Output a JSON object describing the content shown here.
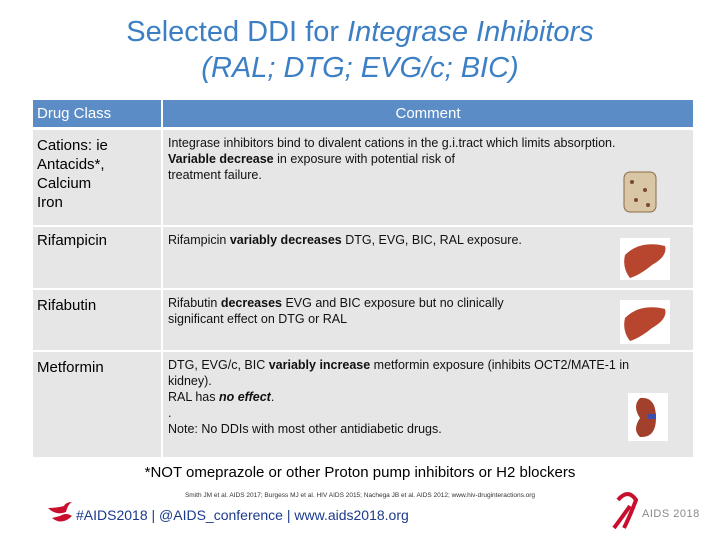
{
  "header": {
    "title": [
      [
        {
          "text": "Selected DDI for "
        },
        {
          "text": "Integrase Inhibitors",
          "italic": true
        }
      ],
      [
        {
          "text": "(RAL; DTG; EVG/c; BIC)",
          "italic": true
        }
      ]
    ]
  },
  "table": {
    "columns": [
      "Drug Class",
      "Comment"
    ],
    "rows": [
      {
        "drug": [
          "Cations: ie",
          "Antacids*,",
          "Calcium",
          "Iron"
        ],
        "comment": [
          [
            {
              "text": "Integrase inhibitors bind to divalent cations in the g.i.tract which limits absorption."
            }
          ],
          [
            {
              "text": "Variable decrease",
              "bold": true
            },
            {
              "text": " in exposure with potential risk of"
            }
          ],
          [
            {
              "text": "treatment failure."
            }
          ]
        ]
      },
      {
        "drug": [
          "Rifampicin"
        ],
        "comment": [
          [
            {
              "text": "Rifampicin "
            },
            {
              "text": "variably decreases",
              "bold": true
            },
            {
              "text": " DTG, EVG, BIC, RAL exposure."
            }
          ]
        ]
      },
      {
        "drug": [
          "Rifabutin"
        ],
        "comment": [
          [
            {
              "text": "Rifabutin "
            },
            {
              "text": "decreases",
              "bold": true
            },
            {
              "text": " EVG and BIC exposure but no clinically"
            }
          ],
          [
            {
              "text": "significant effect on DTG or RAL"
            }
          ]
        ]
      },
      {
        "drug": [
          "Metformin"
        ],
        "comment": [
          [
            {
              "text": "DTG, EVG/c, BIC "
            },
            {
              "text": "variably increase",
              "bold": true
            },
            {
              "text": " metformin exposure (inhibits OCT2/MATE-1 in"
            }
          ],
          [
            {
              "text": "kidney)."
            }
          ],
          [
            {
              "text": "RAL has "
            },
            {
              "text": "no effect",
              "bold": true,
              "italic": true
            },
            {
              "text": "."
            }
          ],
          [
            {
              "text": "."
            }
          ],
          [
            {
              "text": "Note: No DDIs with most other antidiabetic drugs."
            }
          ]
        ]
      }
    ]
  },
  "footnote": "*NOT omeprazole or other Proton pump inhibitors or H2 blockers",
  "references": "Smith JM et al. AIDS 2017; Burgess MJ et al. HIV AIDS 2015; Nachega JB et al. AIDS 2012; www.hiv-druginteractions.org",
  "footer": {
    "links": "#AIDS2018 | @AIDS_conference | www.aids2018.org",
    "logo": "AIDS 2018"
  }
}
